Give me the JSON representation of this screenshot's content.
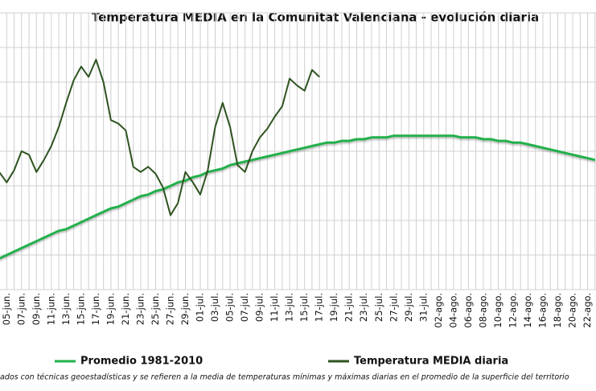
{
  "chart_data": {
    "type": "line",
    "title": "Temperatura MEDIA en la Comunitat Valenciana - evolución diaria",
    "footnote": "ados con técnicas geoestadísticas y se refieren a la media de temperaturas mínimas y máximas diarias en el promedio de la superficie del territorio",
    "categories": [
      null,
      "05-jun.",
      null,
      "07-jun.",
      null,
      "09-jun.",
      null,
      "11-jun.",
      null,
      "13-jun.",
      null,
      "15-jun.",
      null,
      "17-jun.",
      null,
      "19-jun.",
      null,
      "21-jun.",
      null,
      "23-jun.",
      null,
      "25-jun.",
      null,
      "27-jun.",
      null,
      "29-jun.",
      null,
      "01-jul.",
      null,
      "03-jul.",
      null,
      "05-jul.",
      null,
      "07-jul.",
      null,
      "09-jul.",
      null,
      "11-jul.",
      null,
      "13-jul.",
      null,
      "15-jul.",
      null,
      "17-jul.",
      null,
      "19-jul.",
      null,
      "21-jul.",
      null,
      "23-jul.",
      null,
      "25-jul.",
      null,
      "27-jul.",
      null,
      "29-jul.",
      null,
      "31-jul.",
      null,
      "02-ago.",
      null,
      "04-ago.",
      null,
      "06-ago.",
      null,
      "08-ago.",
      null,
      "10-ago.",
      null,
      "12-ago.",
      null,
      "14-ago.",
      null,
      "16-ago.",
      null,
      "18-ago.",
      null,
      "20-ago.",
      null,
      "22-ago.",
      null
    ],
    "series": [
      {
        "name": "Promedio 1981-2010",
        "color": "#22b04b",
        "values": [
          19.8,
          20.0,
          20.2,
          20.4,
          20.6,
          20.8,
          21.0,
          21.2,
          21.4,
          21.5,
          21.7,
          21.9,
          22.1,
          22.3,
          22.5,
          22.7,
          22.8,
          23.0,
          23.2,
          23.4,
          23.5,
          23.7,
          23.8,
          24.0,
          24.2,
          24.3,
          24.5,
          24.6,
          24.8,
          24.9,
          25.0,
          25.2,
          25.3,
          25.4,
          25.5,
          25.6,
          25.7,
          25.8,
          25.9,
          26.0,
          26.1,
          26.2,
          26.3,
          26.4,
          26.5,
          26.5,
          26.6,
          26.6,
          26.7,
          26.7,
          26.8,
          26.8,
          26.8,
          26.9,
          26.9,
          26.9,
          26.9,
          26.9,
          26.9,
          26.9,
          26.9,
          26.9,
          26.8,
          26.8,
          26.8,
          26.7,
          26.7,
          26.6,
          26.6,
          26.5,
          26.5,
          26.4,
          26.3,
          26.2,
          26.1,
          26.0,
          25.9,
          25.8,
          25.7,
          25.6,
          25.5
        ]
      },
      {
        "name": "Temperatura MEDIA diaria",
        "color": "#2e5320",
        "values": [
          24.8,
          24.2,
          24.9,
          26.0,
          25.8,
          24.8,
          25.5,
          26.3,
          27.4,
          28.8,
          30.1,
          30.9,
          30.3,
          31.3,
          30.0,
          27.8,
          27.6,
          27.2,
          25.1,
          24.8,
          25.1,
          24.7,
          23.9,
          22.3,
          23.0,
          24.8,
          24.2,
          23.5,
          24.9,
          27.4,
          28.8,
          27.4,
          25.2,
          24.8,
          26.0,
          26.8,
          27.3,
          28.0,
          28.6,
          30.2,
          29.8,
          29.5,
          30.7,
          30.3,
          null,
          null,
          null,
          null,
          null,
          null,
          null,
          null,
          null,
          null,
          null,
          null,
          null,
          null,
          null,
          null,
          null,
          null,
          null,
          null,
          null,
          null,
          null,
          null,
          null,
          null,
          null,
          null,
          null,
          null,
          null,
          null,
          null,
          null,
          null,
          null,
          null
        ]
      }
    ],
    "ylim": [
      18,
      34
    ],
    "grid": true
  }
}
